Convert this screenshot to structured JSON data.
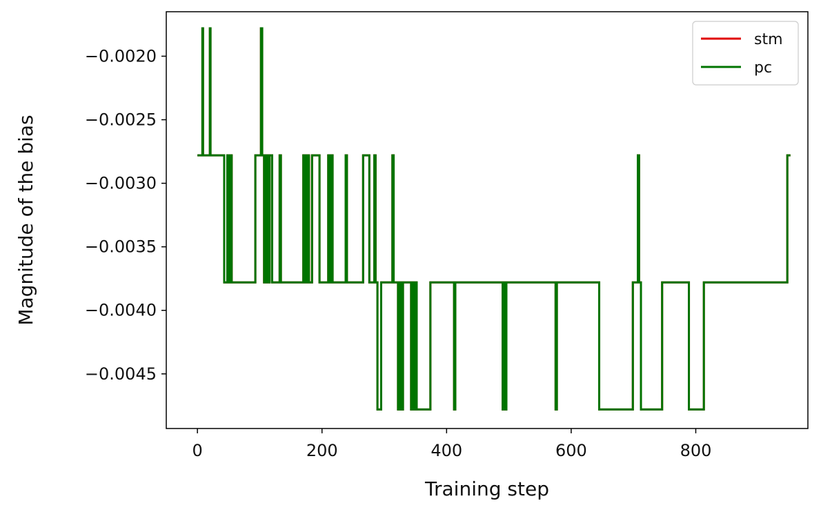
{
  "chart_data": {
    "type": "line",
    "xlabel": "Training step",
    "ylabel": "Magnitude of the bias",
    "xlim": [
      -50,
      980
    ],
    "ylim": [
      -0.00493,
      -0.00165
    ],
    "x_ticks": [
      0,
      200,
      400,
      600,
      800
    ],
    "x_tick_labels": [
      "0",
      "200",
      "400",
      "600",
      "800"
    ],
    "y_ticks": [
      -0.002,
      -0.0025,
      -0.003,
      -0.0035,
      -0.004,
      -0.0045
    ],
    "y_tick_labels": [
      "−0.0020",
      "−0.0025",
      "−0.0030",
      "−0.0035",
      "−0.0040",
      "−0.0045"
    ],
    "grid": false,
    "legend_position": "top-right",
    "step_style": "post",
    "levels": [
      -0.00178,
      -0.00278,
      -0.00378,
      -0.00478
    ],
    "series": [
      {
        "name": "stm",
        "color": "#e00000",
        "points": [
          [
            0,
            -0.00278
          ],
          [
            8,
            -0.00178
          ],
          [
            9,
            -0.00278
          ],
          [
            20,
            -0.00178
          ],
          [
            21,
            -0.00278
          ],
          [
            43,
            -0.00378
          ],
          [
            48,
            -0.00278
          ],
          [
            50,
            -0.00378
          ],
          [
            53,
            -0.00278
          ],
          [
            55,
            -0.00378
          ],
          [
            93,
            -0.00278
          ],
          [
            102,
            -0.00178
          ],
          [
            104,
            -0.00278
          ],
          [
            107,
            -0.00378
          ],
          [
            110,
            -0.00278
          ],
          [
            113,
            -0.00378
          ],
          [
            116,
            -0.00278
          ],
          [
            120,
            -0.00378
          ],
          [
            132,
            -0.00278
          ],
          [
            134,
            -0.00378
          ],
          [
            170,
            -0.00278
          ],
          [
            173,
            -0.00378
          ],
          [
            176,
            -0.00278
          ],
          [
            179,
            -0.00378
          ],
          [
            184,
            -0.00278
          ],
          [
            196,
            -0.00378
          ],
          [
            210,
            -0.00278
          ],
          [
            212,
            -0.00378
          ],
          [
            214,
            -0.00278
          ],
          [
            217,
            -0.00378
          ],
          [
            238,
            -0.00278
          ],
          [
            240,
            -0.00378
          ],
          [
            266,
            -0.00278
          ],
          [
            276,
            -0.00378
          ],
          [
            280,
            -0.00378
          ],
          [
            284,
            -0.00278
          ],
          [
            286,
            -0.00378
          ],
          [
            289,
            -0.00478
          ],
          [
            295,
            -0.00378
          ],
          [
            311,
            -0.00378
          ],
          [
            313,
            -0.00278
          ],
          [
            315,
            -0.00378
          ],
          [
            322,
            -0.00478
          ],
          [
            325,
            -0.00378
          ],
          [
            328,
            -0.00478
          ],
          [
            330,
            -0.00378
          ],
          [
            343,
            -0.00478
          ],
          [
            345,
            -0.00378
          ],
          [
            347,
            -0.00478
          ],
          [
            349,
            -0.00378
          ],
          [
            352,
            -0.00478
          ],
          [
            374,
            -0.00378
          ],
          [
            412,
            -0.00478
          ],
          [
            414,
            -0.00378
          ],
          [
            490,
            -0.00478
          ],
          [
            492,
            -0.00378
          ],
          [
            494,
            -0.00478
          ],
          [
            496,
            -0.00378
          ],
          [
            575,
            -0.00478
          ],
          [
            577,
            -0.00378
          ],
          [
            645,
            -0.00478
          ],
          [
            699,
            -0.00378
          ],
          [
            707,
            -0.00278
          ],
          [
            709,
            -0.00378
          ],
          [
            712,
            -0.00478
          ],
          [
            746,
            -0.00378
          ],
          [
            789,
            -0.00478
          ],
          [
            813,
            -0.00378
          ],
          [
            947,
            -0.00278
          ],
          [
            952,
            -0.00278
          ]
        ]
      },
      {
        "name": "pc",
        "color": "#007400",
        "points": [
          [
            0,
            -0.00278
          ],
          [
            8,
            -0.00178
          ],
          [
            9,
            -0.00278
          ],
          [
            20,
            -0.00178
          ],
          [
            21,
            -0.00278
          ],
          [
            43,
            -0.00378
          ],
          [
            48,
            -0.00278
          ],
          [
            50,
            -0.00378
          ],
          [
            53,
            -0.00278
          ],
          [
            55,
            -0.00378
          ],
          [
            93,
            -0.00278
          ],
          [
            102,
            -0.00178
          ],
          [
            104,
            -0.00278
          ],
          [
            107,
            -0.00378
          ],
          [
            110,
            -0.00278
          ],
          [
            113,
            -0.00378
          ],
          [
            116,
            -0.00278
          ],
          [
            120,
            -0.00378
          ],
          [
            132,
            -0.00278
          ],
          [
            134,
            -0.00378
          ],
          [
            170,
            -0.00278
          ],
          [
            173,
            -0.00378
          ],
          [
            176,
            -0.00278
          ],
          [
            179,
            -0.00378
          ],
          [
            184,
            -0.00278
          ],
          [
            196,
            -0.00378
          ],
          [
            210,
            -0.00278
          ],
          [
            212,
            -0.00378
          ],
          [
            214,
            -0.00278
          ],
          [
            217,
            -0.00378
          ],
          [
            238,
            -0.00278
          ],
          [
            240,
            -0.00378
          ],
          [
            266,
            -0.00278
          ],
          [
            276,
            -0.00378
          ],
          [
            280,
            -0.00378
          ],
          [
            284,
            -0.00278
          ],
          [
            286,
            -0.00378
          ],
          [
            289,
            -0.00478
          ],
          [
            295,
            -0.00378
          ],
          [
            311,
            -0.00378
          ],
          [
            313,
            -0.00278
          ],
          [
            315,
            -0.00378
          ],
          [
            322,
            -0.00478
          ],
          [
            325,
            -0.00378
          ],
          [
            328,
            -0.00478
          ],
          [
            330,
            -0.00378
          ],
          [
            343,
            -0.00478
          ],
          [
            345,
            -0.00378
          ],
          [
            347,
            -0.00478
          ],
          [
            349,
            -0.00378
          ],
          [
            352,
            -0.00478
          ],
          [
            374,
            -0.00378
          ],
          [
            412,
            -0.00478
          ],
          [
            414,
            -0.00378
          ],
          [
            490,
            -0.00478
          ],
          [
            492,
            -0.00378
          ],
          [
            494,
            -0.00478
          ],
          [
            496,
            -0.00378
          ],
          [
            575,
            -0.00478
          ],
          [
            577,
            -0.00378
          ],
          [
            645,
            -0.00478
          ],
          [
            699,
            -0.00378
          ],
          [
            707,
            -0.00278
          ],
          [
            709,
            -0.00378
          ],
          [
            712,
            -0.00478
          ],
          [
            746,
            -0.00378
          ],
          [
            789,
            -0.00478
          ],
          [
            813,
            -0.00378
          ],
          [
            947,
            -0.00278
          ],
          [
            952,
            -0.00278
          ]
        ]
      }
    ]
  }
}
